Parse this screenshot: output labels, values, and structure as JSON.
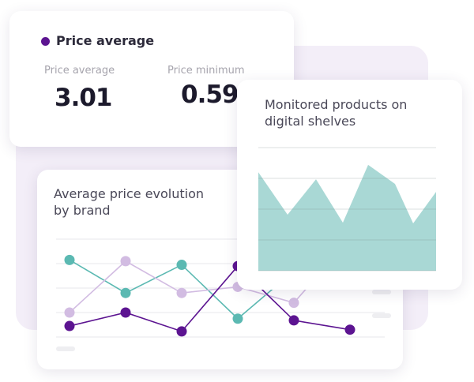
{
  "price_card": {
    "title": "Price average",
    "accent": "#5c1491",
    "stats": [
      {
        "label": "Price average",
        "value": "3.01"
      },
      {
        "label": "Price minimum",
        "value": "0.59"
      }
    ]
  },
  "line_card": {
    "title_lines": [
      "Average price evolution",
      "by brand"
    ]
  },
  "area_card": {
    "title_lines": [
      "Monitored products on",
      "digital shelves"
    ]
  },
  "chart_data": [
    {
      "type": "line",
      "grid": true,
      "ylim": [
        0,
        4
      ],
      "x": [
        1,
        2,
        3,
        4,
        5,
        6
      ],
      "series": [
        {
          "color": "#5bb9b2",
          "values": [
            3.15,
            1.8,
            2.95,
            0.75,
            2.7,
            3.4
          ]
        },
        {
          "color": "#d2bce2",
          "values": [
            1.0,
            3.1,
            1.8,
            2.05,
            1.4,
            4.0
          ]
        },
        {
          "color": "#5c1491",
          "values": [
            0.45,
            1.0,
            0.23,
            2.9,
            0.68,
            0.3
          ]
        }
      ]
    },
    {
      "type": "area",
      "grid": true,
      "ylim": [
        0,
        4
      ],
      "color": "#a9d8d5",
      "values": [
        3.2,
        1.82,
        2.97,
        1.56,
        3.44,
        2.82,
        1.54,
        2.56
      ]
    }
  ]
}
